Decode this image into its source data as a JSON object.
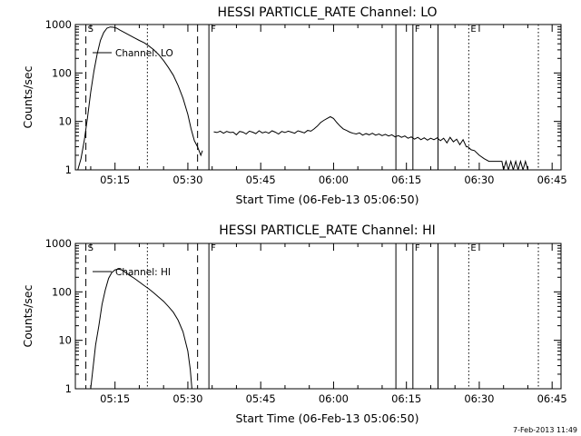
{
  "footer_timestamp": "7-Feb-2013 11:49",
  "chart_data": [
    {
      "type": "line",
      "title": "HESSI PARTICLE_RATE Channel: LO",
      "xlabel": "Start Time (06-Feb-13 05:06:50)",
      "ylabel": "Counts/sec",
      "yscale": "log",
      "xlim": [
        "05:06:50",
        "06:46:50"
      ],
      "ylim": [
        1,
        1000
      ],
      "xticks": [
        "05:15",
        "05:30",
        "05:45",
        "06:00",
        "06:15",
        "06:30",
        "06:45"
      ],
      "yticks": [
        "1",
        "10",
        "100",
        "1000"
      ],
      "legend": "Channel: LO",
      "color": "#000000",
      "series": [
        {
          "name": "Channel: LO",
          "segments": [
            [
              [
                "05:07:20",
                1.0
              ],
              [
                "05:08:00",
                1.7
              ],
              [
                "05:08:40",
                4
              ],
              [
                "05:09:20",
                12
              ],
              [
                "05:10:00",
                40
              ],
              [
                "05:10:40",
                110
              ],
              [
                "05:11:20",
                250
              ],
              [
                "05:12:00",
                470
              ],
              [
                "05:12:40",
                680
              ],
              [
                "05:13:20",
                840
              ],
              [
                "05:14:00",
                890
              ],
              [
                "05:14:40",
                880
              ],
              [
                "05:15:20",
                840
              ],
              [
                "05:16:00",
                770
              ],
              [
                "05:17:00",
                680
              ],
              [
                "05:18:00",
                600
              ],
              [
                "05:19:00",
                530
              ],
              [
                "05:20:00",
                470
              ],
              [
                "05:21:00",
                420
              ],
              [
                "05:22:00",
                360
              ],
              [
                "05:23:00",
                300
              ],
              [
                "05:24:00",
                240
              ],
              [
                "05:25:00",
                180
              ],
              [
                "05:26:00",
                130
              ],
              [
                "05:27:00",
                90
              ],
              [
                "05:28:00",
                55
              ],
              [
                "05:29:00",
                30
              ],
              [
                "05:30:00",
                14
              ],
              [
                "05:30:40",
                7
              ],
              [
                "05:31:20",
                4
              ],
              [
                "05:32:00",
                3
              ],
              [
                "05:32:40",
                2
              ],
              [
                "05:33:00",
                2.5
              ]
            ],
            [
              [
                "05:35:20",
                6.1
              ],
              [
                "05:36:00",
                5.9
              ],
              [
                "05:36:40",
                6.3
              ],
              [
                "05:37:20",
                5.7
              ],
              [
                "05:38:00",
                6.2
              ],
              [
                "05:38:40",
                5.9
              ],
              [
                "05:39:20",
                6.0
              ],
              [
                "05:40:00",
                5.3
              ],
              [
                "05:40:40",
                6.2
              ],
              [
                "05:41:20",
                6.0
              ],
              [
                "05:42:00",
                5.5
              ],
              [
                "05:42:40",
                6.3
              ],
              [
                "05:43:20",
                6.0
              ],
              [
                "05:44:00",
                5.6
              ],
              [
                "05:44:40",
                6.4
              ],
              [
                "05:45:20",
                5.8
              ],
              [
                "05:46:00",
                6.1
              ],
              [
                "05:46:40",
                5.7
              ],
              [
                "05:47:20",
                6.4
              ],
              [
                "05:48:00",
                6.0
              ],
              [
                "05:48:40",
                5.5
              ],
              [
                "05:49:20",
                6.2
              ],
              [
                "05:50:00",
                5.9
              ],
              [
                "05:50:40",
                6.3
              ],
              [
                "05:51:20",
                6.0
              ],
              [
                "05:52:00",
                5.7
              ],
              [
                "05:52:40",
                6.4
              ],
              [
                "05:53:20",
                6.1
              ],
              [
                "05:54:00",
                5.8
              ],
              [
                "05:54:40",
                6.5
              ],
              [
                "05:55:20",
                6.3
              ],
              [
                "05:56:00",
                7.0
              ],
              [
                "05:56:40",
                8.0
              ],
              [
                "05:57:20",
                9.5
              ],
              [
                "05:58:00",
                10.5
              ],
              [
                "05:58:40",
                11.5
              ],
              [
                "05:59:20",
                12.5
              ],
              [
                "06:00:00",
                11.5
              ],
              [
                "06:00:40",
                9.5
              ],
              [
                "06:01:20",
                8.0
              ],
              [
                "06:02:00",
                7.0
              ],
              [
                "06:02:40",
                6.5
              ],
              [
                "06:03:20",
                6.0
              ],
              [
                "06:04:00",
                5.7
              ],
              [
                "06:04:40",
                5.5
              ],
              [
                "06:05:20",
                5.8
              ],
              [
                "06:06:00",
                5.2
              ],
              [
                "06:06:40",
                5.6
              ],
              [
                "06:07:20",
                5.3
              ],
              [
                "06:08:00",
                5.7
              ],
              [
                "06:08:40",
                5.2
              ],
              [
                "06:09:20",
                5.5
              ],
              [
                "06:10:00",
                5.1
              ],
              [
                "06:10:40",
                5.4
              ],
              [
                "06:11:20",
                5.0
              ],
              [
                "06:12:00",
                5.3
              ],
              [
                "06:12:40",
                4.8
              ],
              [
                "06:13:20",
                5.1
              ],
              [
                "06:14:00",
                4.7
              ],
              [
                "06:14:40",
                5.0
              ],
              [
                "06:15:20",
                4.5
              ],
              [
                "06:16:00",
                4.8
              ],
              [
                "06:16:40",
                4.3
              ],
              [
                "06:17:20",
                4.7
              ],
              [
                "06:18:00",
                4.2
              ],
              [
                "06:18:40",
                4.6
              ],
              [
                "06:19:20",
                4.1
              ],
              [
                "06:20:00",
                4.5
              ],
              [
                "06:20:40",
                4.2
              ],
              [
                "06:21:20",
                4.6
              ],
              [
                "06:22:00",
                4.0
              ],
              [
                "06:22:40",
                4.5
              ],
              [
                "06:23:20",
                3.6
              ],
              [
                "06:24:00",
                4.7
              ],
              [
                "06:24:40",
                3.8
              ],
              [
                "06:25:20",
                4.3
              ],
              [
                "06:26:00",
                3.3
              ],
              [
                "06:26:40",
                4.2
              ],
              [
                "06:27:20",
                3.0
              ],
              [
                "06:27:40",
                3.0
              ],
              [
                "06:28:20",
                2.6
              ],
              [
                "06:29:00",
                2.5
              ],
              [
                "06:30:00",
                2.0
              ],
              [
                "06:31:00",
                1.7
              ],
              [
                "06:32:00",
                1.5
              ],
              [
                "06:33:00",
                1.5
              ],
              [
                "06:34:00",
                1.5
              ],
              [
                "06:34:40",
                1.5
              ],
              [
                "06:35:00",
                1.0
              ],
              [
                "06:35:30",
                1.5
              ],
              [
                "06:36:00",
                1.0
              ],
              [
                "06:36:30",
                1.5
              ],
              [
                "06:37:00",
                1.0
              ],
              [
                "06:37:30",
                1.5
              ],
              [
                "06:38:00",
                1.0
              ],
              [
                "06:38:30",
                1.5
              ],
              [
                "06:39:00",
                1.0
              ],
              [
                "06:39:30",
                1.5
              ],
              [
                "06:40:00",
                1.0
              ],
              [
                "06:40:40",
                1.0
              ]
            ]
          ]
        }
      ]
    },
    {
      "type": "line",
      "title": "HESSI PARTICLE_RATE Channel: HI",
      "xlabel": "Start Time (06-Feb-13 05:06:50)",
      "ylabel": "Counts/sec",
      "yscale": "log",
      "xlim": [
        "05:06:50",
        "06:46:50"
      ],
      "ylim": [
        1,
        1000
      ],
      "xticks": [
        "05:15",
        "05:30",
        "05:45",
        "06:00",
        "06:15",
        "06:30",
        "06:45"
      ],
      "yticks": [
        "1",
        "10",
        "100",
        "1000"
      ],
      "legend": "Channel: HI",
      "color": "#000000",
      "series": [
        {
          "name": "Channel: HI",
          "segments": [
            [
              [
                "05:10:00",
                1.0
              ],
              [
                "05:10:20",
                2
              ],
              [
                "05:10:40",
                4
              ],
              [
                "05:11:00",
                8
              ],
              [
                "05:11:40",
                20
              ],
              [
                "05:12:20",
                55
              ],
              [
                "05:13:00",
                110
              ],
              [
                "05:13:40",
                190
              ],
              [
                "05:14:20",
                250
              ],
              [
                "05:15:00",
                285
              ],
              [
                "05:15:40",
                295
              ],
              [
                "05:16:20",
                285
              ],
              [
                "05:17:00",
                260
              ],
              [
                "05:18:00",
                220
              ],
              [
                "05:19:00",
                190
              ],
              [
                "05:20:00",
                160
              ],
              [
                "05:21:00",
                135
              ],
              [
                "05:22:00",
                115
              ],
              [
                "05:23:00",
                95
              ],
              [
                "05:24:00",
                78
              ],
              [
                "05:25:00",
                64
              ],
              [
                "05:26:00",
                50
              ],
              [
                "05:27:00",
                38
              ],
              [
                "05:28:00",
                26
              ],
              [
                "05:29:00",
                15
              ],
              [
                "05:30:00",
                6
              ],
              [
                "05:30:30",
                2.5
              ],
              [
                "05:30:50",
                1.0
              ]
            ]
          ]
        }
      ]
    }
  ],
  "time_markers": {
    "dashed": [
      "05:09:00",
      "05:32:00"
    ],
    "solid": [
      "05:34:20",
      "06:12:50",
      "06:16:20",
      "06:21:30"
    ],
    "dotted": [
      "05:21:40",
      "06:27:50",
      "06:42:10"
    ],
    "letters": [
      {
        "text": "S",
        "time": "05:09:00"
      },
      {
        "text": "F",
        "time": "05:34:20"
      },
      {
        "text": "F",
        "time": "06:16:20"
      },
      {
        "text": "E",
        "time": "06:27:50"
      }
    ]
  }
}
